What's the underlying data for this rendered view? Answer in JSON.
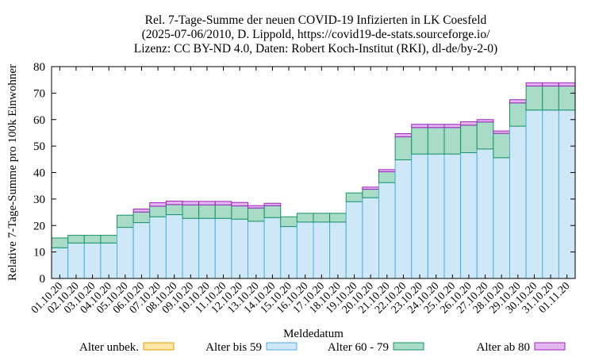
{
  "title_lines": [
    "Rel. 7-Tage-Summe der neuen COVID-19 Infizierten in LK Coesfeld",
    "(2025-07-06/2010, D. Lippold, https://covid19-de-stats.sourceforge.io/",
    "Lizenz: CC BY-ND 4.0, Daten: Robert Koch-Institut (RKI), dl-de/by-2-0)"
  ],
  "chart_data": {
    "type": "bar",
    "stacked": true,
    "xlabel": "Meldedatum",
    "ylabel": "Relative 7-Tage-Summe pro 100k Einwohner",
    "ylim": [
      0,
      80
    ],
    "yticks": [
      0,
      10,
      20,
      30,
      40,
      50,
      60,
      70,
      80
    ],
    "grid": false,
    "legend_position": "bottom",
    "categories": [
      "01.10.20",
      "02.10.20",
      "03.10.20",
      "04.10.20",
      "05.10.20",
      "06.10.20",
      "07.10.20",
      "08.10.20",
      "09.10.20",
      "10.10.20",
      "11.10.20",
      "12.10.20",
      "13.10.20",
      "14.10.20",
      "15.10.20",
      "16.10.20",
      "17.10.20",
      "18.10.20",
      "19.10.20",
      "20.10.20",
      "21.10.20",
      "22.10.20",
      "23.10.20",
      "24.10.20",
      "25.10.20",
      "26.10.20",
      "27.10.20",
      "28.10.20",
      "29.10.20",
      "30.10.20",
      "31.10.20",
      "01.11.20"
    ],
    "series": [
      {
        "name": "Alter unbek.",
        "fill": "#fde5a6",
        "stroke": "#e0a100",
        "values": [
          0,
          0,
          0,
          0,
          0,
          0,
          0,
          0,
          0,
          0,
          0,
          0,
          0,
          0,
          0,
          0,
          0,
          0,
          0,
          0,
          0,
          0,
          0,
          0,
          0,
          0,
          0,
          0,
          0,
          0,
          0,
          0
        ]
      },
      {
        "name": "Alter bis 59",
        "fill": "#cfe8f8",
        "stroke": "#4daee0",
        "values": [
          11.6,
          13.4,
          13.4,
          13.4,
          19.3,
          21.1,
          23.3,
          24.1,
          22.7,
          22.7,
          22.7,
          22.4,
          21.6,
          23.0,
          19.6,
          21.3,
          21.3,
          21.3,
          29.0,
          30.5,
          36.2,
          44.8,
          47.0,
          47.0,
          47.0,
          47.5,
          48.9,
          45.6,
          57.5,
          63.6,
          63.6,
          63.6
        ]
      },
      {
        "name": "Alter 60 - 79",
        "fill": "#a8dcc6",
        "stroke": "#159466",
        "values": [
          3.7,
          2.9,
          2.9,
          2.9,
          4.6,
          4.0,
          4.0,
          3.8,
          5.1,
          5.1,
          5.1,
          5.0,
          5.0,
          4.5,
          3.7,
          3.3,
          3.3,
          3.3,
          3.3,
          3.2,
          4.1,
          8.7,
          10.0,
          10.0,
          10.0,
          10.4,
          10.2,
          9.2,
          8.8,
          9.1,
          9.1,
          9.1
        ]
      },
      {
        "name": "Alter ab 80",
        "fill": "#e2b6ef",
        "stroke": "#a020c0",
        "values": [
          0,
          0,
          0,
          0,
          0,
          1.1,
          1.3,
          1.3,
          1.3,
          1.3,
          1.3,
          1.3,
          0.9,
          0.9,
          0,
          0,
          0,
          0,
          0,
          0.8,
          0.8,
          1.2,
          1.2,
          1.2,
          1.2,
          1.3,
          0.9,
          0.9,
          1.2,
          1.2,
          1.2,
          1.2
        ]
      }
    ]
  }
}
